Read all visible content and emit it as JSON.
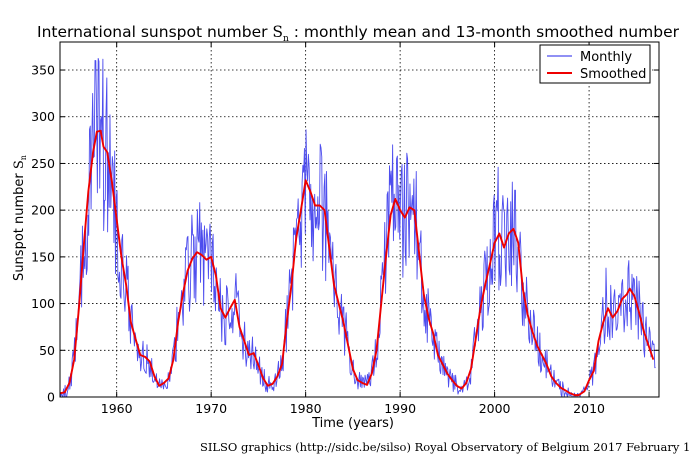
{
  "chart_data": {
    "type": "line",
    "title": {
      "prefix": "International sunspot number ",
      "symbol": "S",
      "subscript": "n",
      "suffix": " : monthly mean and 13-month smoothed number"
    },
    "xlabel": "Time (years)",
    "ylabel": {
      "text": "Sunspot number ",
      "symbol": "S",
      "subscript": "n"
    },
    "xlim": [
      1954.0,
      2017.4
    ],
    "ylim": [
      0,
      380
    ],
    "xticks": [
      1960,
      1970,
      1980,
      1990,
      2000,
      2010
    ],
    "yticks": [
      0,
      50,
      100,
      150,
      200,
      250,
      300,
      350
    ],
    "grid": true,
    "legend_position": "top-right",
    "series": [
      {
        "name": "Monthly",
        "color": "#4d4dee",
        "noise": "high-frequency month-to-month scatter around the smoothed curve, peaks up to ~360 near 1957.8",
        "extreme_points": [
          [
            1957.2,
            290
          ],
          [
            1957.8,
            360
          ],
          [
            1958.4,
            300
          ],
          [
            1958.9,
            305
          ],
          [
            1979.9,
            266
          ],
          [
            1989.6,
            255
          ],
          [
            1991.0,
            228
          ],
          [
            2000.4,
            246
          ],
          [
            2001.9,
            230
          ],
          [
            2011.8,
            138
          ],
          [
            2014.2,
            146
          ]
        ]
      },
      {
        "name": "Smoothed",
        "color": "#ee0000",
        "points": [
          [
            1954.0,
            4
          ],
          [
            1954.5,
            5
          ],
          [
            1955.0,
            15
          ],
          [
            1955.5,
            40
          ],
          [
            1956.0,
            95
          ],
          [
            1956.5,
            160
          ],
          [
            1957.0,
            220
          ],
          [
            1957.5,
            262
          ],
          [
            1957.9,
            284
          ],
          [
            1958.3,
            285
          ],
          [
            1958.6,
            268
          ],
          [
            1959.0,
            262
          ],
          [
            1959.5,
            230
          ],
          [
            1960.0,
            190
          ],
          [
            1960.5,
            150
          ],
          [
            1961.0,
            120
          ],
          [
            1961.5,
            80
          ],
          [
            1962.0,
            62
          ],
          [
            1962.5,
            45
          ],
          [
            1963.0,
            43
          ],
          [
            1963.5,
            38
          ],
          [
            1964.0,
            22
          ],
          [
            1964.5,
            12
          ],
          [
            1965.0,
            15
          ],
          [
            1965.5,
            20
          ],
          [
            1966.0,
            40
          ],
          [
            1966.5,
            80
          ],
          [
            1967.0,
            110
          ],
          [
            1967.5,
            135
          ],
          [
            1968.0,
            148
          ],
          [
            1968.5,
            155
          ],
          [
            1969.0,
            152
          ],
          [
            1969.5,
            147
          ],
          [
            1970.0,
            150
          ],
          [
            1970.5,
            130
          ],
          [
            1971.0,
            95
          ],
          [
            1971.5,
            85
          ],
          [
            1972.0,
            95
          ],
          [
            1972.5,
            104
          ],
          [
            1973.0,
            75
          ],
          [
            1973.5,
            60
          ],
          [
            1974.0,
            45
          ],
          [
            1974.5,
            47
          ],
          [
            1975.0,
            34
          ],
          [
            1975.5,
            20
          ],
          [
            1976.0,
            12
          ],
          [
            1976.5,
            14
          ],
          [
            1977.0,
            22
          ],
          [
            1977.5,
            35
          ],
          [
            1978.0,
            80
          ],
          [
            1978.5,
            120
          ],
          [
            1979.0,
            170
          ],
          [
            1979.5,
            200
          ],
          [
            1980.0,
            232
          ],
          [
            1980.5,
            220
          ],
          [
            1981.0,
            205
          ],
          [
            1981.5,
            205
          ],
          [
            1982.0,
            200
          ],
          [
            1982.5,
            160
          ],
          [
            1983.0,
            120
          ],
          [
            1983.5,
            100
          ],
          [
            1984.0,
            80
          ],
          [
            1984.5,
            55
          ],
          [
            1985.0,
            30
          ],
          [
            1985.5,
            18
          ],
          [
            1986.0,
            15
          ],
          [
            1986.5,
            13
          ],
          [
            1987.0,
            25
          ],
          [
            1987.5,
            50
          ],
          [
            1988.0,
            100
          ],
          [
            1988.5,
            150
          ],
          [
            1989.0,
            195
          ],
          [
            1989.5,
            212
          ],
          [
            1990.0,
            200
          ],
          [
            1990.5,
            192
          ],
          [
            1991.0,
            203
          ],
          [
            1991.5,
            200
          ],
          [
            1992.0,
            155
          ],
          [
            1992.5,
            110
          ],
          [
            1993.0,
            85
          ],
          [
            1993.5,
            68
          ],
          [
            1994.0,
            45
          ],
          [
            1994.5,
            35
          ],
          [
            1995.0,
            25
          ],
          [
            1995.5,
            18
          ],
          [
            1996.0,
            12
          ],
          [
            1996.5,
            9
          ],
          [
            1997.0,
            15
          ],
          [
            1997.5,
            30
          ],
          [
            1998.0,
            62
          ],
          [
            1998.5,
            95
          ],
          [
            1999.0,
            120
          ],
          [
            1999.5,
            142
          ],
          [
            2000.0,
            165
          ],
          [
            2000.5,
            175
          ],
          [
            2001.0,
            160
          ],
          [
            2001.5,
            175
          ],
          [
            2002.0,
            180
          ],
          [
            2002.5,
            165
          ],
          [
            2003.0,
            115
          ],
          [
            2003.5,
            88
          ],
          [
            2004.0,
            70
          ],
          [
            2004.5,
            55
          ],
          [
            2005.0,
            45
          ],
          [
            2005.5,
            35
          ],
          [
            2006.0,
            22
          ],
          [
            2006.5,
            15
          ],
          [
            2007.0,
            10
          ],
          [
            2007.5,
            7
          ],
          [
            2008.0,
            4
          ],
          [
            2008.5,
            2
          ],
          [
            2008.9,
            2
          ],
          [
            2009.5,
            6
          ],
          [
            2010.0,
            18
          ],
          [
            2010.5,
            28
          ],
          [
            2011.0,
            60
          ],
          [
            2011.5,
            80
          ],
          [
            2012.0,
            95
          ],
          [
            2012.5,
            85
          ],
          [
            2013.0,
            92
          ],
          [
            2013.5,
            105
          ],
          [
            2014.0,
            110
          ],
          [
            2014.3,
            116
          ],
          [
            2014.8,
            108
          ],
          [
            2015.3,
            90
          ],
          [
            2015.8,
            70
          ],
          [
            2016.3,
            55
          ],
          [
            2016.8,
            40
          ]
        ]
      }
    ]
  },
  "credit": "SILSO graphics (http://sidc.be/silso)  Royal Observatory of Belgium  2017 February 1"
}
